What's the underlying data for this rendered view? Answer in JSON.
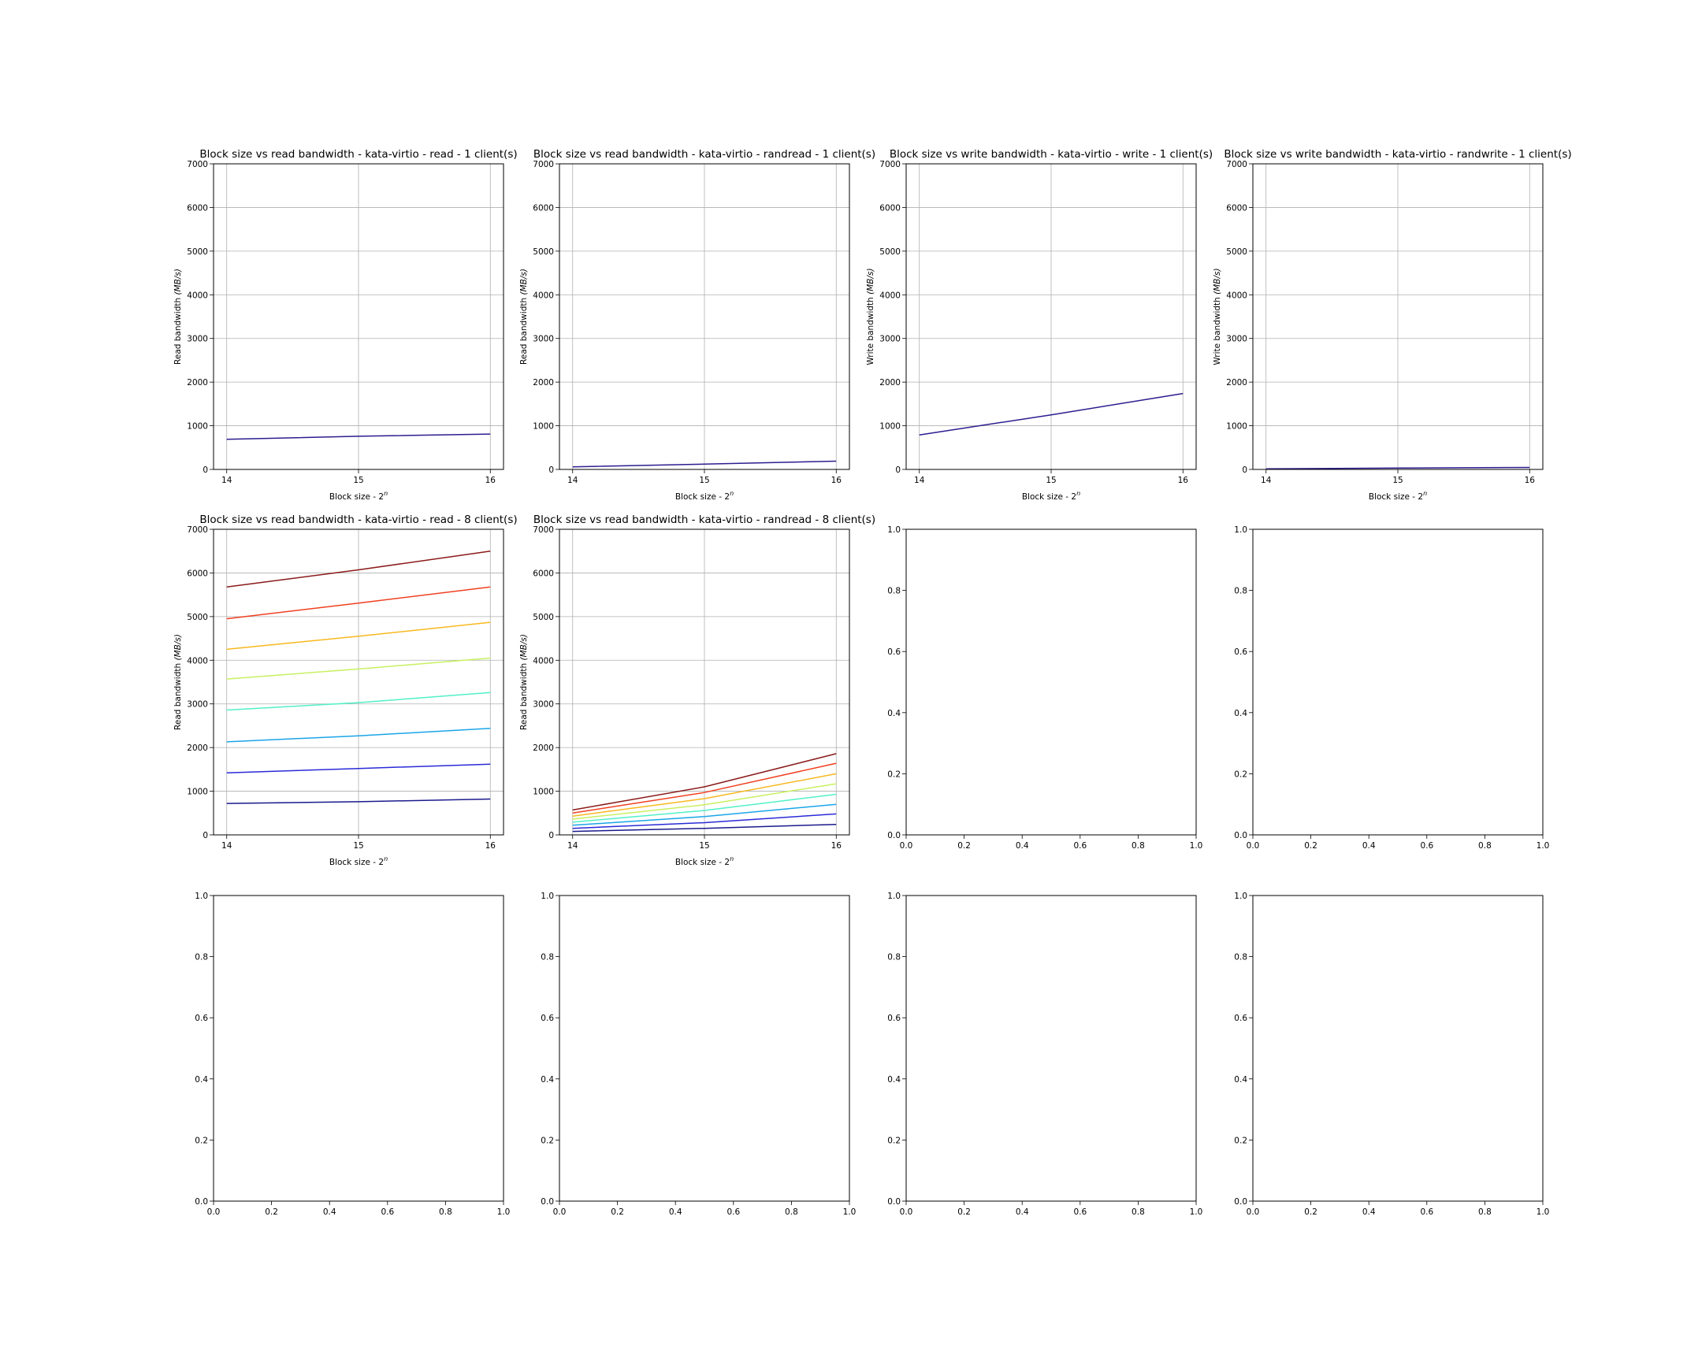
{
  "chart_data": [
    {
      "type": "line",
      "title": "Block size vs read bandwidth - kata-virtio - read - 1 client(s)",
      "xlabel": "Block size - 2",
      "xlabel_superscript": "n",
      "ylabel": "Read bandwidth",
      "ylabel_unit": "(MB/s)",
      "x": [
        14,
        15,
        16
      ],
      "xlim": [
        13.9,
        16.1
      ],
      "ylim": [
        0,
        7000
      ],
      "xticks": [
        "14",
        "15",
        "16"
      ],
      "yticks": [
        "0",
        "1000",
        "2000",
        "3000",
        "4000",
        "5000",
        "6000",
        "7000"
      ],
      "grid": true,
      "series": [
        {
          "color": "#2b1d8f",
          "values": [
            690,
            760,
            810
          ]
        }
      ]
    },
    {
      "type": "line",
      "title": "Block size vs read bandwidth - kata-virtio - randread - 1 client(s)",
      "xlabel": "Block size - 2",
      "xlabel_superscript": "n",
      "ylabel": "Read bandwidth",
      "ylabel_unit": "(MB/s)",
      "x": [
        14,
        15,
        16
      ],
      "xlim": [
        13.9,
        16.1
      ],
      "ylim": [
        0,
        7000
      ],
      "xticks": [
        "14",
        "15",
        "16"
      ],
      "yticks": [
        "0",
        "1000",
        "2000",
        "3000",
        "4000",
        "5000",
        "6000",
        "7000"
      ],
      "grid": true,
      "series": [
        {
          "color": "#2b1d8f",
          "values": [
            60,
            120,
            190
          ]
        }
      ]
    },
    {
      "type": "line",
      "title": "Block size vs write bandwidth - kata-virtio - write - 1 client(s)",
      "xlabel": "Block size - 2",
      "xlabel_superscript": "n",
      "ylabel": "Write bandwidth",
      "ylabel_unit": "(MB/s)",
      "x": [
        14,
        15,
        16
      ],
      "xlim": [
        13.9,
        16.1
      ],
      "ylim": [
        0,
        7000
      ],
      "xticks": [
        "14",
        "15",
        "16"
      ],
      "yticks": [
        "0",
        "1000",
        "2000",
        "3000",
        "4000",
        "5000",
        "6000",
        "7000"
      ],
      "grid": true,
      "series": [
        {
          "color": "#2b1d8f",
          "values": [
            790,
            1250,
            1740
          ]
        }
      ]
    },
    {
      "type": "line",
      "title": "Block size vs write bandwidth - kata-virtio - randwrite - 1 client(s)",
      "xlabel": "Block size - 2",
      "xlabel_superscript": "n",
      "ylabel": "Write bandwidth",
      "ylabel_unit": "(MB/s)",
      "x": [
        14,
        15,
        16
      ],
      "xlim": [
        13.9,
        16.1
      ],
      "ylim": [
        0,
        7000
      ],
      "xticks": [
        "14",
        "15",
        "16"
      ],
      "yticks": [
        "0",
        "1000",
        "2000",
        "3000",
        "4000",
        "5000",
        "6000",
        "7000"
      ],
      "grid": true,
      "series": [
        {
          "color": "#2b1d8f",
          "values": [
            15,
            30,
            45
          ]
        }
      ]
    },
    {
      "type": "line",
      "title": "Block size vs read bandwidth - kata-virtio - read - 8 client(s)",
      "xlabel": "Block size - 2",
      "xlabel_superscript": "n",
      "ylabel": "Read bandwidth",
      "ylabel_unit": "(MB/s)",
      "x": [
        14,
        15,
        16
      ],
      "xlim": [
        13.9,
        16.1
      ],
      "ylim": [
        0,
        7000
      ],
      "xticks": [
        "14",
        "15",
        "16"
      ],
      "yticks": [
        "0",
        "1000",
        "2000",
        "3000",
        "4000",
        "5000",
        "6000",
        "7000"
      ],
      "grid": true,
      "series": [
        {
          "color": "#1a1a8c",
          "values": [
            720,
            760,
            820
          ]
        },
        {
          "color": "#2a2ad8",
          "values": [
            1420,
            1520,
            1620
          ]
        },
        {
          "color": "#1aa5e8",
          "values": [
            2130,
            2270,
            2440
          ]
        },
        {
          "color": "#52f0c8",
          "values": [
            2860,
            3030,
            3260
          ]
        },
        {
          "color": "#c8f060",
          "values": [
            3570,
            3800,
            4050
          ]
        },
        {
          "color": "#f8b820",
          "values": [
            4250,
            4550,
            4870
          ]
        },
        {
          "color": "#f04020",
          "values": [
            4950,
            5310,
            5680
          ]
        },
        {
          "color": "#8b1a1a",
          "values": [
            5680,
            6070,
            6500
          ]
        }
      ]
    },
    {
      "type": "line",
      "title": "Block size vs read bandwidth - kata-virtio - randread - 8 client(s)",
      "xlabel": "Block size - 2",
      "xlabel_superscript": "n",
      "ylabel": "Read bandwidth",
      "ylabel_unit": "(MB/s)",
      "x": [
        14,
        15,
        16
      ],
      "xlim": [
        13.9,
        16.1
      ],
      "ylim": [
        0,
        7000
      ],
      "xticks": [
        "14",
        "15",
        "16"
      ],
      "yticks": [
        "0",
        "1000",
        "2000",
        "3000",
        "4000",
        "5000",
        "6000",
        "7000"
      ],
      "grid": true,
      "series": [
        {
          "color": "#1a1a8c",
          "values": [
            80,
            150,
            240
          ]
        },
        {
          "color": "#2a2ad8",
          "values": [
            150,
            280,
            480
          ]
        },
        {
          "color": "#1aa5e8",
          "values": [
            220,
            420,
            700
          ]
        },
        {
          "color": "#52f0c8",
          "values": [
            290,
            560,
            930
          ]
        },
        {
          "color": "#c8f060",
          "values": [
            360,
            690,
            1170
          ]
        },
        {
          "color": "#f8b820",
          "values": [
            430,
            830,
            1400
          ]
        },
        {
          "color": "#f04020",
          "values": [
            500,
            970,
            1640
          ]
        },
        {
          "color": "#8b1a1a",
          "values": [
            570,
            1100,
            1860
          ]
        }
      ]
    },
    {
      "type": "line",
      "title": "",
      "xlim": [
        0,
        1
      ],
      "ylim": [
        0,
        1
      ],
      "xticks": [
        "0.0",
        "0.2",
        "0.4",
        "0.6",
        "0.8",
        "1.0"
      ],
      "yticks": [
        "0.0",
        "0.2",
        "0.4",
        "0.6",
        "0.8",
        "1.0"
      ],
      "grid": false,
      "series": []
    },
    {
      "type": "line",
      "title": "",
      "xlim": [
        0,
        1
      ],
      "ylim": [
        0,
        1
      ],
      "xticks": [
        "0.0",
        "0.2",
        "0.4",
        "0.6",
        "0.8",
        "1.0"
      ],
      "yticks": [
        "0.0",
        "0.2",
        "0.4",
        "0.6",
        "0.8",
        "1.0"
      ],
      "grid": false,
      "series": []
    },
    {
      "type": "line",
      "title": "",
      "xlim": [
        0,
        1
      ],
      "ylim": [
        0,
        1
      ],
      "xticks": [
        "0.0",
        "0.2",
        "0.4",
        "0.6",
        "0.8",
        "1.0"
      ],
      "yticks": [
        "0.0",
        "0.2",
        "0.4",
        "0.6",
        "0.8",
        "1.0"
      ],
      "grid": false,
      "series": []
    },
    {
      "type": "line",
      "title": "",
      "xlim": [
        0,
        1
      ],
      "ylim": [
        0,
        1
      ],
      "xticks": [
        "0.0",
        "0.2",
        "0.4",
        "0.6",
        "0.8",
        "1.0"
      ],
      "yticks": [
        "0.0",
        "0.2",
        "0.4",
        "0.6",
        "0.8",
        "1.0"
      ],
      "grid": false,
      "series": []
    },
    {
      "type": "line",
      "title": "",
      "xlim": [
        0,
        1
      ],
      "ylim": [
        0,
        1
      ],
      "xticks": [
        "0.0",
        "0.2",
        "0.4",
        "0.6",
        "0.8",
        "1.0"
      ],
      "yticks": [
        "0.0",
        "0.2",
        "0.4",
        "0.6",
        "0.8",
        "1.0"
      ],
      "grid": false,
      "series": []
    },
    {
      "type": "line",
      "title": "",
      "xlim": [
        0,
        1
      ],
      "ylim": [
        0,
        1
      ],
      "xticks": [
        "0.0",
        "0.2",
        "0.4",
        "0.6",
        "0.8",
        "1.0"
      ],
      "yticks": [
        "0.0",
        "0.2",
        "0.4",
        "0.6",
        "0.8",
        "1.0"
      ],
      "grid": false,
      "series": []
    }
  ]
}
